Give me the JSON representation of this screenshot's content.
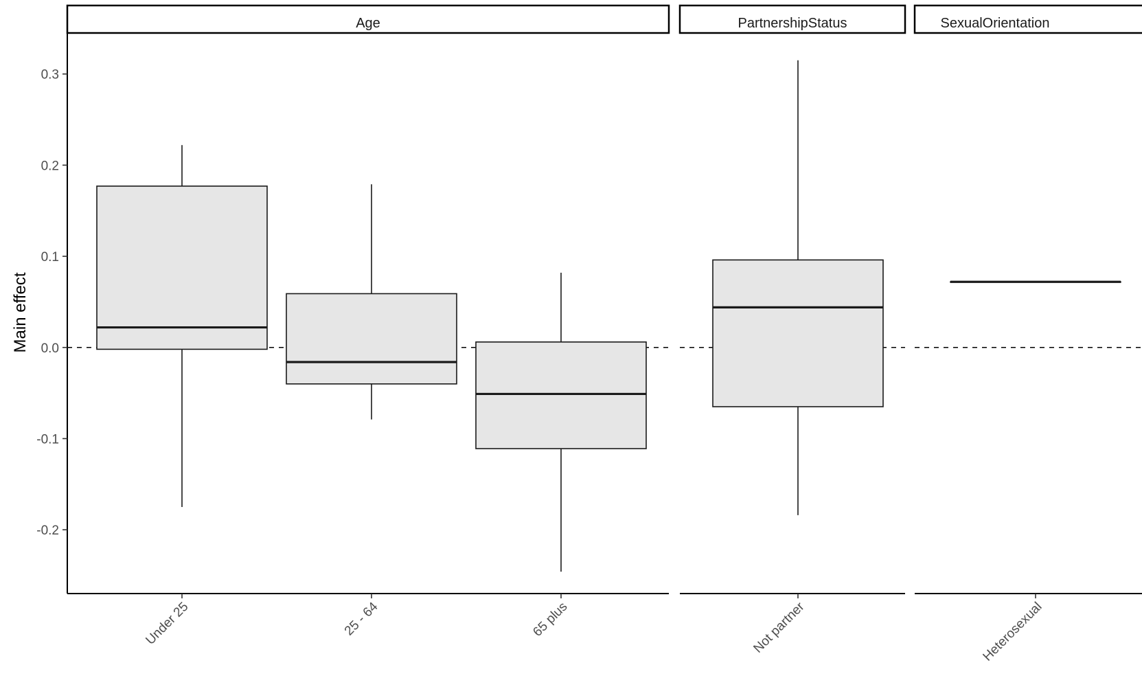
{
  "chart_data": {
    "type": "box",
    "title": "",
    "xlabel": "",
    "ylabel": "Main effect",
    "ylim": [
      -0.27,
      0.345
    ],
    "yticks": [
      0.3,
      0.2,
      0.1,
      0.0,
      -0.1,
      -0.2
    ],
    "ytick_labels": [
      "0.3",
      "0.2",
      "0.1",
      "0.0",
      "-0.1",
      "-0.2"
    ],
    "reference_line": {
      "y": 0.0,
      "style": "dashed"
    },
    "box_fill": "#e6e6e6",
    "line_color": "#1a1a1a",
    "panels": [
      {
        "strip_label": "Age",
        "categories": [
          {
            "label": "Under 25",
            "whisker_low": -0.175,
            "q1": -0.002,
            "median": 0.022,
            "q3": 0.177,
            "whisker_high": 0.222
          },
          {
            "label": "25 - 64",
            "whisker_low": -0.079,
            "q1": -0.04,
            "median": -0.016,
            "q3": 0.059,
            "whisker_high": 0.179
          },
          {
            "label": "65 plus",
            "whisker_low": -0.246,
            "q1": -0.111,
            "median": -0.051,
            "q3": 0.006,
            "whisker_high": 0.082
          }
        ]
      },
      {
        "strip_label": "PartnershipStatus",
        "categories": [
          {
            "label": "Not partner",
            "whisker_low": -0.184,
            "q1": -0.065,
            "median": 0.044,
            "q3": 0.096,
            "whisker_high": 0.315
          }
        ]
      },
      {
        "strip_label": "SexualOrientation",
        "categories": [
          {
            "label": "Heterosexual",
            "whisker_low": 0.072,
            "q1": 0.072,
            "median": 0.072,
            "q3": 0.072,
            "whisker_high": 0.072
          }
        ]
      }
    ]
  }
}
